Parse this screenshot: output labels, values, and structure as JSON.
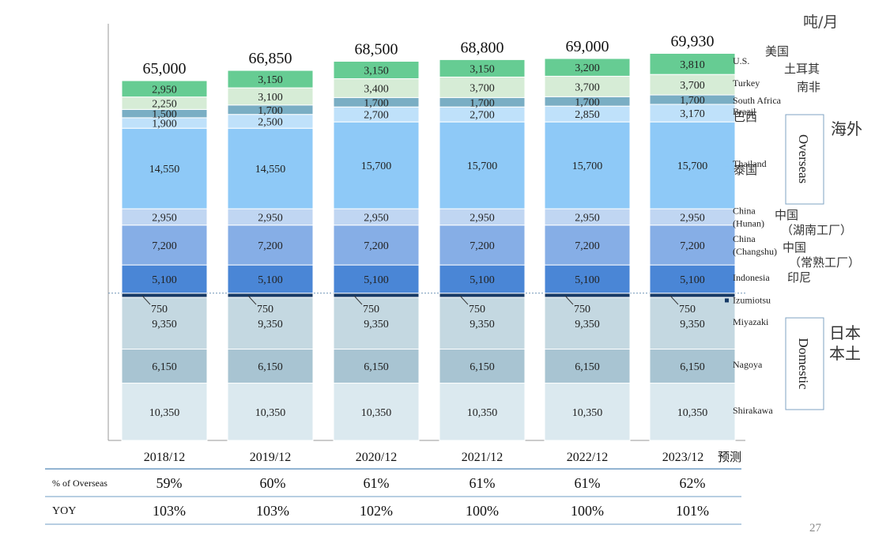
{
  "chart_data": {
    "type": "bar",
    "stacked": true,
    "unit_label": "吨/月",
    "categories": [
      "2018/12",
      "2019/12",
      "2020/12",
      "2021/12",
      "2022/12",
      "2023/12"
    ],
    "category_notes": [
      "",
      "",
      "",
      "",
      "",
      "预测"
    ],
    "totals": [
      "65,000",
      "66,850",
      "68,500",
      "68,800",
      "69,000",
      "69,930"
    ],
    "series": [
      {
        "name": "Shirakawa",
        "cn": "",
        "color": "#dbe9ef",
        "values": [
          10350,
          10350,
          10350,
          10350,
          10350,
          10350
        ]
      },
      {
        "name": "Nagoya",
        "cn": "",
        "color": "#a8c4d2",
        "values": [
          6150,
          6150,
          6150,
          6150,
          6150,
          6150
        ]
      },
      {
        "name": "Miyazaki",
        "cn": "",
        "color": "#c4d8e1",
        "values": [
          9350,
          9350,
          9350,
          9350,
          9350,
          9350
        ]
      },
      {
        "name": "Izumiotsu",
        "cn": "",
        "color": "#173a66",
        "values": [
          750,
          750,
          750,
          750,
          750,
          750
        ]
      },
      {
        "name": "Indonesia",
        "cn": "印尼",
        "color": "#4a86d6",
        "values": [
          5100,
          5100,
          5100,
          5100,
          5100,
          5100
        ]
      },
      {
        "name": "China (Changshu)",
        "cn": "中国 （常熟工厂）",
        "color": "#86aee6",
        "values": [
          7200,
          7200,
          7200,
          7200,
          7200,
          7200
        ]
      },
      {
        "name": "China (Hunan)",
        "cn": "中国 （湖南工厂）",
        "color": "#c0d6f2",
        "values": [
          2950,
          2950,
          2950,
          2950,
          2950,
          2950
        ]
      },
      {
        "name": "Thailand",
        "cn": "泰国",
        "color": "#8ec9f7",
        "values": [
          14550,
          14550,
          15700,
          15700,
          15700,
          15700
        ]
      },
      {
        "name": "Brazil",
        "cn": "巴西",
        "color": "#bfe1fa",
        "values": [
          1900,
          2500,
          2700,
          2700,
          2850,
          3170
        ]
      },
      {
        "name": "South Africa",
        "cn": "南非",
        "color": "#7aaec4",
        "values": [
          1500,
          1700,
          1700,
          1700,
          1700,
          1700
        ]
      },
      {
        "name": "Turkey",
        "cn": "土耳其",
        "color": "#d6ecd6",
        "values": [
          2250,
          3100,
          3400,
          3700,
          3700,
          3700
        ]
      },
      {
        "name": "U.S.",
        "cn": "美国",
        "color": "#66cc93",
        "values": [
          2950,
          3150,
          3150,
          3150,
          3200,
          3810
        ]
      }
    ],
    "groups": {
      "overseas": {
        "label": "Overseas",
        "cn": "海外"
      },
      "domestic": {
        "label": "Domestic",
        "cn": "日本本土"
      }
    },
    "table": {
      "rows": [
        {
          "label": "% of Overseas",
          "values": [
            "59%",
            "60%",
            "61%",
            "61%",
            "61%",
            "62%"
          ]
        },
        {
          "label": "YOY",
          "values": [
            "103%",
            "103%",
            "102%",
            "100%",
            "100%",
            "101%"
          ]
        }
      ]
    }
  },
  "page_number": "27"
}
